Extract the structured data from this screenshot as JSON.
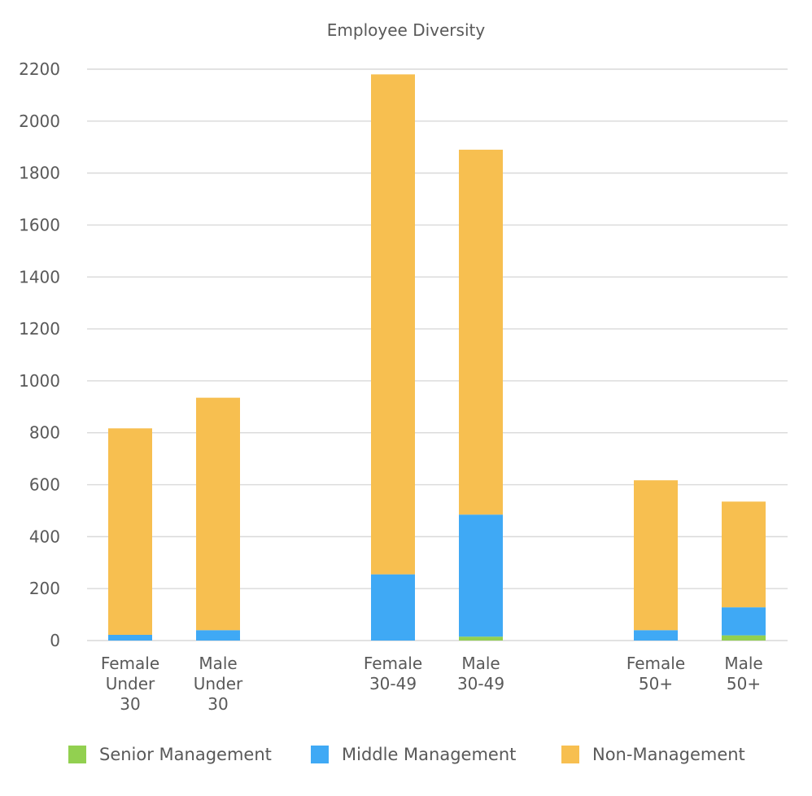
{
  "chart_data": {
    "type": "bar",
    "stacked": true,
    "title": "Employee Diversity",
    "xlabel": "",
    "ylabel": "",
    "ylim": [
      0,
      2200
    ],
    "yticks": [
      0,
      200,
      400,
      600,
      800,
      1000,
      1200,
      1400,
      1600,
      1800,
      2000,
      2200
    ],
    "grid": true,
    "legend_position": "bottom",
    "categories": [
      [
        "Female",
        "Under",
        "30"
      ],
      [
        "Male",
        "Under",
        "30"
      ],
      [
        "Female",
        "30-49"
      ],
      [
        "Male",
        "30-49"
      ],
      [
        "Female",
        "50+"
      ],
      [
        "Male",
        "50+"
      ]
    ],
    "series": [
      {
        "name": "Senior Management",
        "color": "#92d050",
        "values": [
          0,
          0,
          0,
          15,
          0,
          20
        ]
      },
      {
        "name": "Middle Management",
        "color": "#3fa9f5",
        "values": [
          22,
          40,
          255,
          470,
          40,
          108
        ]
      },
      {
        "name": "Non-Management",
        "color": "#f7bf50",
        "values": [
          795,
          895,
          1925,
          1405,
          577,
          407
        ]
      }
    ]
  }
}
